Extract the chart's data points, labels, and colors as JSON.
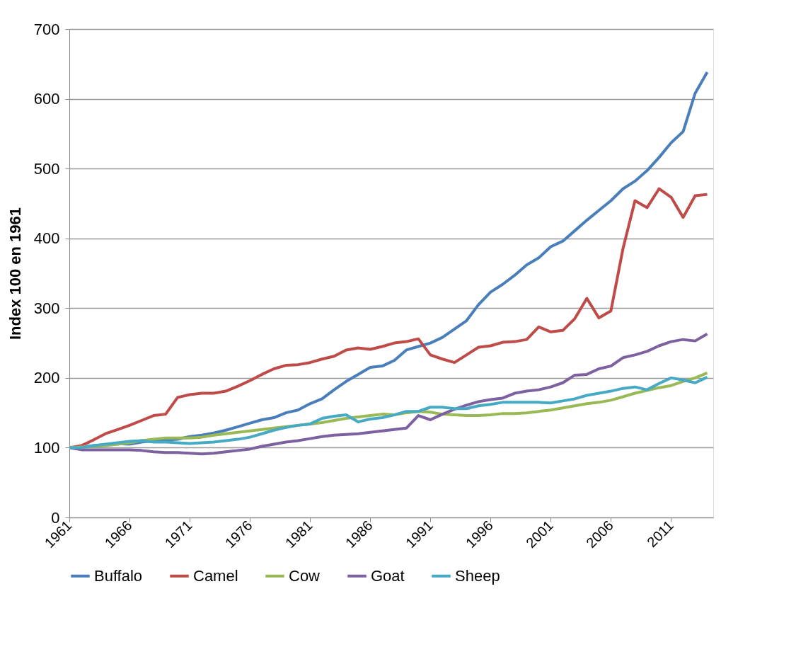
{
  "chart_data": {
    "type": "line",
    "ylabel": "Index 100 en 1961",
    "x": [
      1961,
      1962,
      1963,
      1964,
      1965,
      1966,
      1967,
      1968,
      1969,
      1970,
      1971,
      1972,
      1973,
      1974,
      1975,
      1976,
      1977,
      1978,
      1979,
      1980,
      1981,
      1982,
      1983,
      1984,
      1985,
      1986,
      1987,
      1988,
      1989,
      1990,
      1991,
      1992,
      1993,
      1994,
      1995,
      1996,
      1997,
      1998,
      1999,
      2000,
      2001,
      2002,
      2003,
      2004,
      2005,
      2006,
      2007,
      2008,
      2009,
      2010,
      2011,
      2012,
      2013,
      2014
    ],
    "xlim": [
      1961,
      2014.5
    ],
    "xticks": [
      1961,
      1966,
      1971,
      1976,
      1981,
      1986,
      1991,
      1996,
      2001,
      2006,
      2011
    ],
    "ylim": [
      0,
      700
    ],
    "yticks": [
      0,
      100,
      200,
      300,
      400,
      500,
      600,
      700
    ],
    "grid": "y",
    "legend": "bottom",
    "marker": "none",
    "line_style": "solid",
    "series": [
      {
        "name": "Buffalo",
        "color": "#4a7ebb",
        "values": [
          100,
          101,
          103,
          104,
          106,
          105,
          108,
          110,
          111,
          112,
          116,
          118,
          121,
          125,
          130,
          135,
          140,
          143,
          150,
          154,
          163,
          170,
          183,
          195,
          205,
          215,
          217,
          225,
          240,
          245,
          250,
          258,
          270,
          282,
          305,
          323,
          334,
          347,
          362,
          372,
          388,
          396,
          411,
          426,
          440,
          454,
          471,
          482,
          497,
          516,
          537,
          553,
          608,
          638
        ]
      },
      {
        "name": "Camel",
        "color": "#be4b48",
        "values": [
          100,
          103,
          111,
          120,
          126,
          132,
          139,
          146,
          148,
          172,
          176,
          178,
          178,
          181,
          188,
          196,
          205,
          213,
          218,
          219,
          222,
          227,
          231,
          240,
          243,
          241,
          245,
          250,
          252,
          256,
          233,
          227,
          222,
          233,
          244,
          246,
          251,
          252,
          255,
          273,
          266,
          268,
          285,
          314,
          286,
          296,
          385,
          454,
          444,
          471,
          459,
          430,
          461,
          463
        ]
      },
      {
        "name": "Cow",
        "color": "#98b954",
        "values": [
          100,
          101,
          102,
          103,
          105,
          107,
          110,
          112,
          114,
          114,
          114,
          115,
          118,
          120,
          122,
          124,
          126,
          128,
          130,
          132,
          134,
          136,
          139,
          142,
          144,
          146,
          148,
          147,
          150,
          152,
          151,
          148,
          147,
          146,
          146,
          147,
          149,
          149,
          150,
          152,
          154,
          157,
          160,
          163,
          165,
          168,
          173,
          178,
          182,
          186,
          189,
          195,
          200,
          207
        ]
      },
      {
        "name": "Goat",
        "color": "#7d60a0",
        "values": [
          100,
          97,
          97,
          97,
          97,
          97,
          96,
          94,
          93,
          93,
          92,
          91,
          92,
          94,
          96,
          98,
          102,
          105,
          108,
          110,
          113,
          116,
          118,
          119,
          120,
          122,
          124,
          126,
          128,
          146,
          140,
          148,
          155,
          161,
          166,
          169,
          171,
          178,
          181,
          183,
          187,
          193,
          204,
          205,
          213,
          217,
          229,
          233,
          238,
          246,
          252,
          255,
          253,
          263
        ]
      },
      {
        "name": "Sheep",
        "color": "#46aac5",
        "values": [
          100,
          100,
          103,
          105,
          107,
          109,
          110,
          108,
          108,
          107,
          106,
          107,
          108,
          110,
          112,
          115,
          120,
          125,
          129,
          132,
          134,
          142,
          145,
          147,
          137,
          141,
          143,
          147,
          152,
          152,
          158,
          158,
          156,
          156,
          160,
          162,
          165,
          165,
          165,
          165,
          164,
          167,
          170,
          175,
          178,
          181,
          185,
          187,
          183,
          192,
          200,
          197,
          193,
          201
        ]
      }
    ]
  }
}
